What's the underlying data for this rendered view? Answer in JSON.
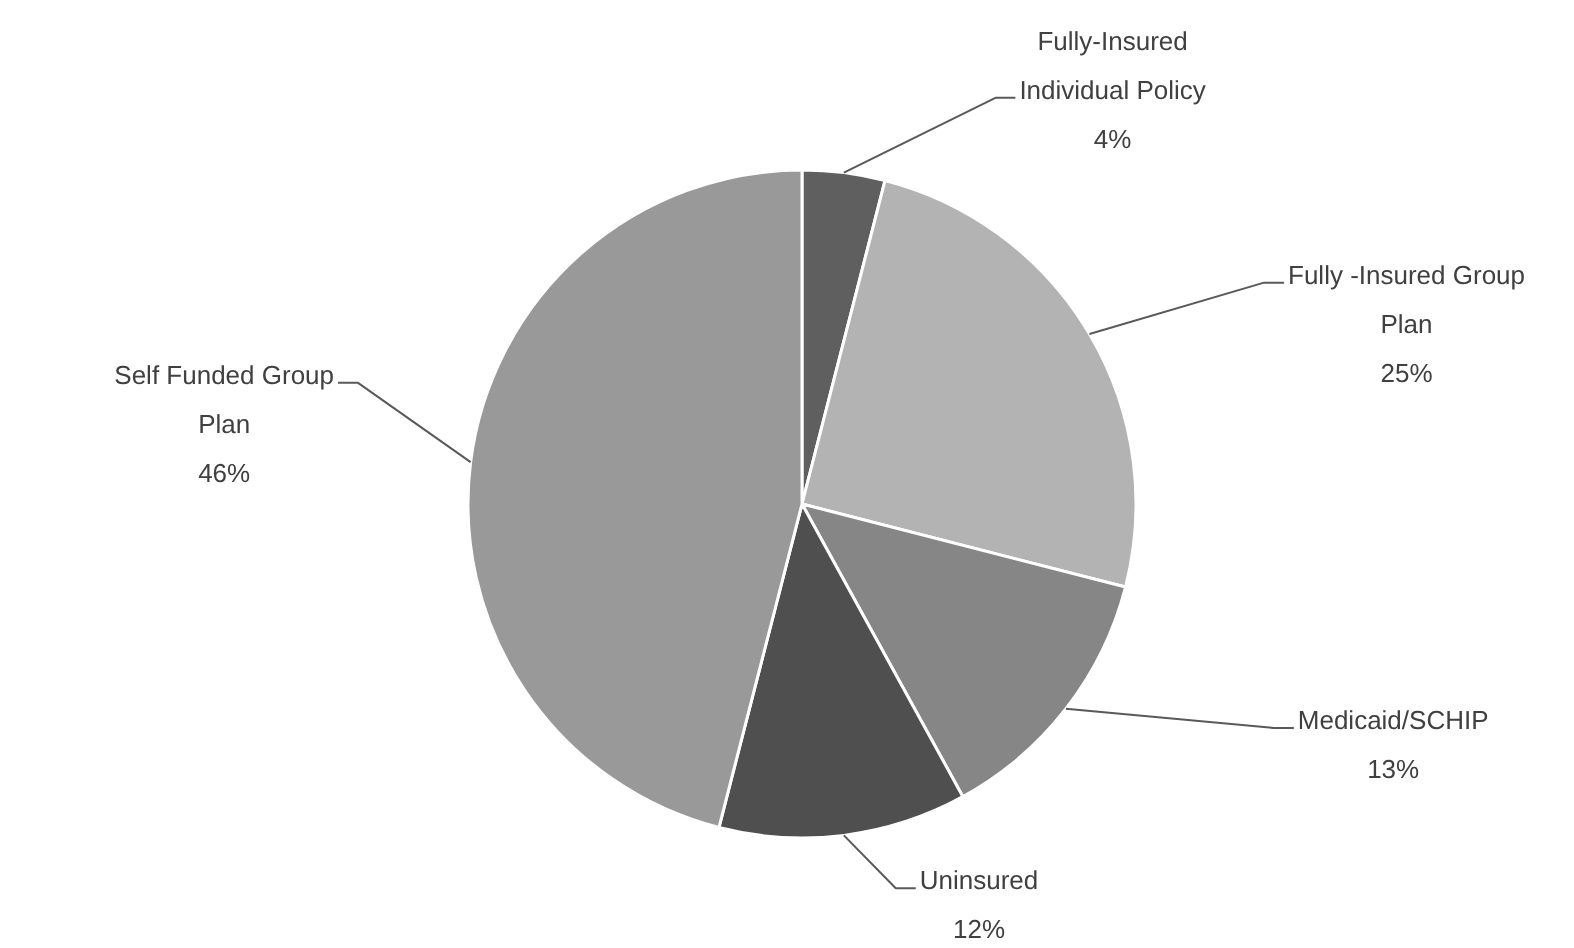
{
  "chart_data": {
    "type": "pie",
    "categories": [
      "Fully-Insured Individual Policy",
      "Fully -Insured Group Plan",
      "Medicaid/SCHIP",
      "Uninsured",
      "Self Funded Group Plan"
    ],
    "values": [
      4,
      25,
      13,
      12,
      46
    ],
    "colors": [
      "#5f5f5f",
      "#b3b3b3",
      "#868686",
      "#4f4f4f",
      "#999999"
    ],
    "value_labels": [
      "4%",
      "25%",
      "13%",
      "12%",
      "46%"
    ]
  }
}
